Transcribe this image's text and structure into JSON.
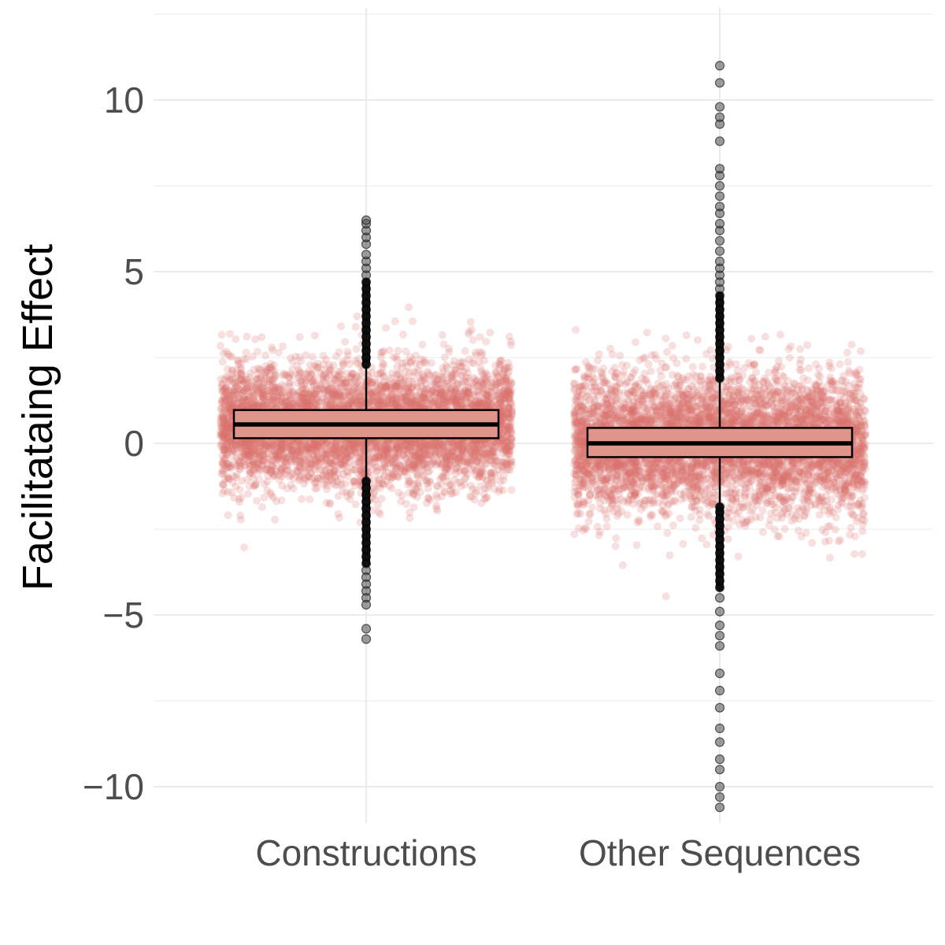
{
  "chart_data": {
    "type": "boxplot",
    "title": "",
    "xlabel": "",
    "ylabel": "Facilitataing Effect",
    "ylim": [
      -10.8,
      12.5
    ],
    "yticks": [
      -10,
      -5,
      0,
      5,
      10
    ],
    "ytick_labels": [
      "−10",
      "−5",
      "0",
      "5",
      "10"
    ],
    "grid": true,
    "legend": "none",
    "colors": {
      "jitter": "#d9736c",
      "box_fill": "#e0958a",
      "box_line": "#000000",
      "outlier": "#4d4d4d",
      "grid": "#ebebeb"
    },
    "categories": [
      "Constructions",
      "Other Sequences"
    ],
    "series": [
      {
        "name": "Constructions",
        "q1": 0.15,
        "median": 0.55,
        "q3": 0.97,
        "whisker_low": -1.05,
        "whisker_high": 2.25,
        "outliers_high": [
          2.3,
          2.5,
          2.7,
          2.9,
          3.1,
          3.3,
          3.5,
          3.7,
          3.9,
          4.1,
          4.3,
          4.5,
          4.7,
          4.9,
          5.1,
          5.3,
          5.5,
          5.8,
          6.0,
          6.2,
          6.4,
          6.5
        ],
        "outliers_low": [
          -1.1,
          -1.3,
          -1.5,
          -1.7,
          -1.9,
          -2.1,
          -2.3,
          -2.5,
          -2.7,
          -2.9,
          -3.1,
          -3.3,
          -3.5,
          -3.7,
          -3.9,
          -4.1,
          -4.3,
          -4.5,
          -4.7,
          -5.4,
          -5.7
        ],
        "jitter_sd": 0.9,
        "jitter_range": [
          -5.8,
          6.6
        ]
      },
      {
        "name": "Other Sequences",
        "q1": -0.4,
        "median": 0.0,
        "q3": 0.45,
        "whisker_low": -1.8,
        "whisker_high": 1.85,
        "outliers_high": [
          1.9,
          2.1,
          2.3,
          2.5,
          2.7,
          2.9,
          3.1,
          3.3,
          3.5,
          3.7,
          3.9,
          4.1,
          4.3,
          4.5,
          4.7,
          4.9,
          5.1,
          5.3,
          5.6,
          5.9,
          6.2,
          6.4,
          6.7,
          6.9,
          7.2,
          7.5,
          7.8,
          8.0,
          8.8,
          9.3,
          9.5,
          9.8,
          10.5,
          11.0
        ],
        "outliers_low": [
          -1.85,
          -2.0,
          -2.2,
          -2.4,
          -2.6,
          -2.8,
          -3.0,
          -3.2,
          -3.4,
          -3.6,
          -3.8,
          -4.0,
          -4.2,
          -4.5,
          -4.9,
          -5.3,
          -5.6,
          -5.9,
          -6.7,
          -7.2,
          -7.7,
          -8.3,
          -8.7,
          -9.2,
          -9.5,
          -10.0,
          -10.3,
          -10.6
        ],
        "jitter_sd": 1.0,
        "jitter_range": [
          -10.7,
          11.0
        ]
      }
    ]
  }
}
